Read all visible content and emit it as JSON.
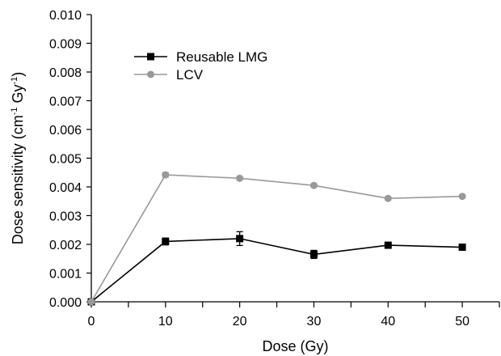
{
  "chart_data": {
    "type": "line",
    "xlabel": "Dose (Gy)",
    "ylabel": {
      "main": "Dose sensitivity (cm",
      "sup1": "-1",
      "mid": " Gy",
      "sup2": "-1",
      "end": ")"
    },
    "xlim": [
      0,
      55
    ],
    "ylim": [
      0,
      0.01
    ],
    "x_ticks": [
      0,
      10,
      20,
      30,
      40,
      50
    ],
    "x_tick_labels": [
      "0",
      "10",
      "20",
      "30",
      "40",
      "50"
    ],
    "y_ticks": [
      0,
      0.001,
      0.002,
      0.003,
      0.004,
      0.005,
      0.006,
      0.007,
      0.008,
      0.009,
      0.01
    ],
    "y_tick_labels": [
      "0.000",
      "0.001",
      "0.002",
      "0.003",
      "0.004",
      "0.005",
      "0.006",
      "0.007",
      "0.008",
      "0.009",
      "0.010"
    ],
    "grid": false,
    "legend_position": "top-left",
    "series": [
      {
        "name": "Reusable LMG",
        "color": "#000000",
        "marker": "square",
        "x": [
          0,
          10,
          20,
          30,
          40,
          50
        ],
        "y": [
          0,
          0.0021,
          0.0022,
          0.00165,
          0.00197,
          0.0019
        ],
        "err": [
          0,
          0.00012,
          0.00024,
          0.00014,
          8e-05,
          8e-05
        ]
      },
      {
        "name": "LCV",
        "color": "#999999",
        "marker": "circle",
        "x": [
          0,
          10,
          20,
          30,
          40,
          50
        ],
        "y": [
          0,
          0.00442,
          0.0043,
          0.00405,
          0.0036,
          0.00367
        ],
        "err": [
          0,
          8e-05,
          6e-05,
          6e-05,
          5e-05,
          5e-05
        ]
      }
    ]
  }
}
